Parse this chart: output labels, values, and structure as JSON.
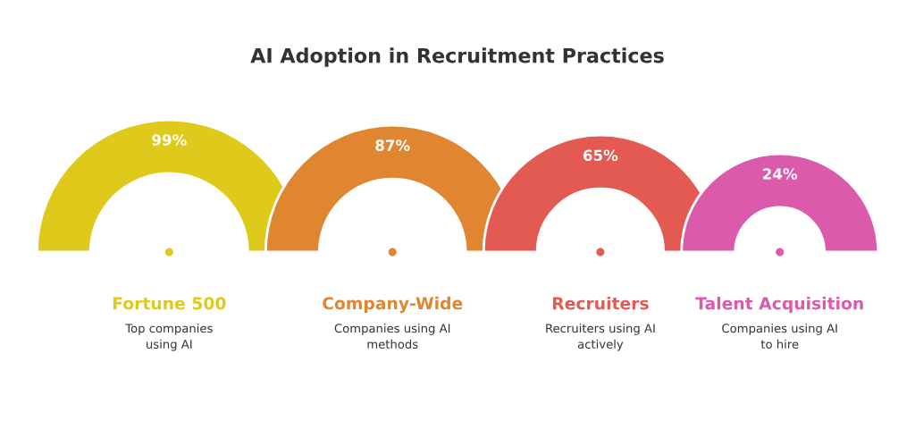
{
  "chart_data": {
    "type": "other",
    "title": "AI Adoption in Recruitment Practices",
    "categories": [
      "Fortune 500",
      "Company-Wide",
      "Recruiters",
      "Talent Acquisition"
    ],
    "values": [
      99,
      87,
      65,
      24
    ],
    "value_labels": [
      "99%",
      "87%",
      "65%",
      "24%"
    ],
    "colors": [
      "#dfc91a",
      "#e08530",
      "#e25a52",
      "#dc5aac"
    ],
    "annotations": [
      "Top companies\nusing AI",
      "Companies using AI\nmethods",
      "Recruiters using AI\nactively",
      "Companies using AI\nto hire"
    ]
  }
}
